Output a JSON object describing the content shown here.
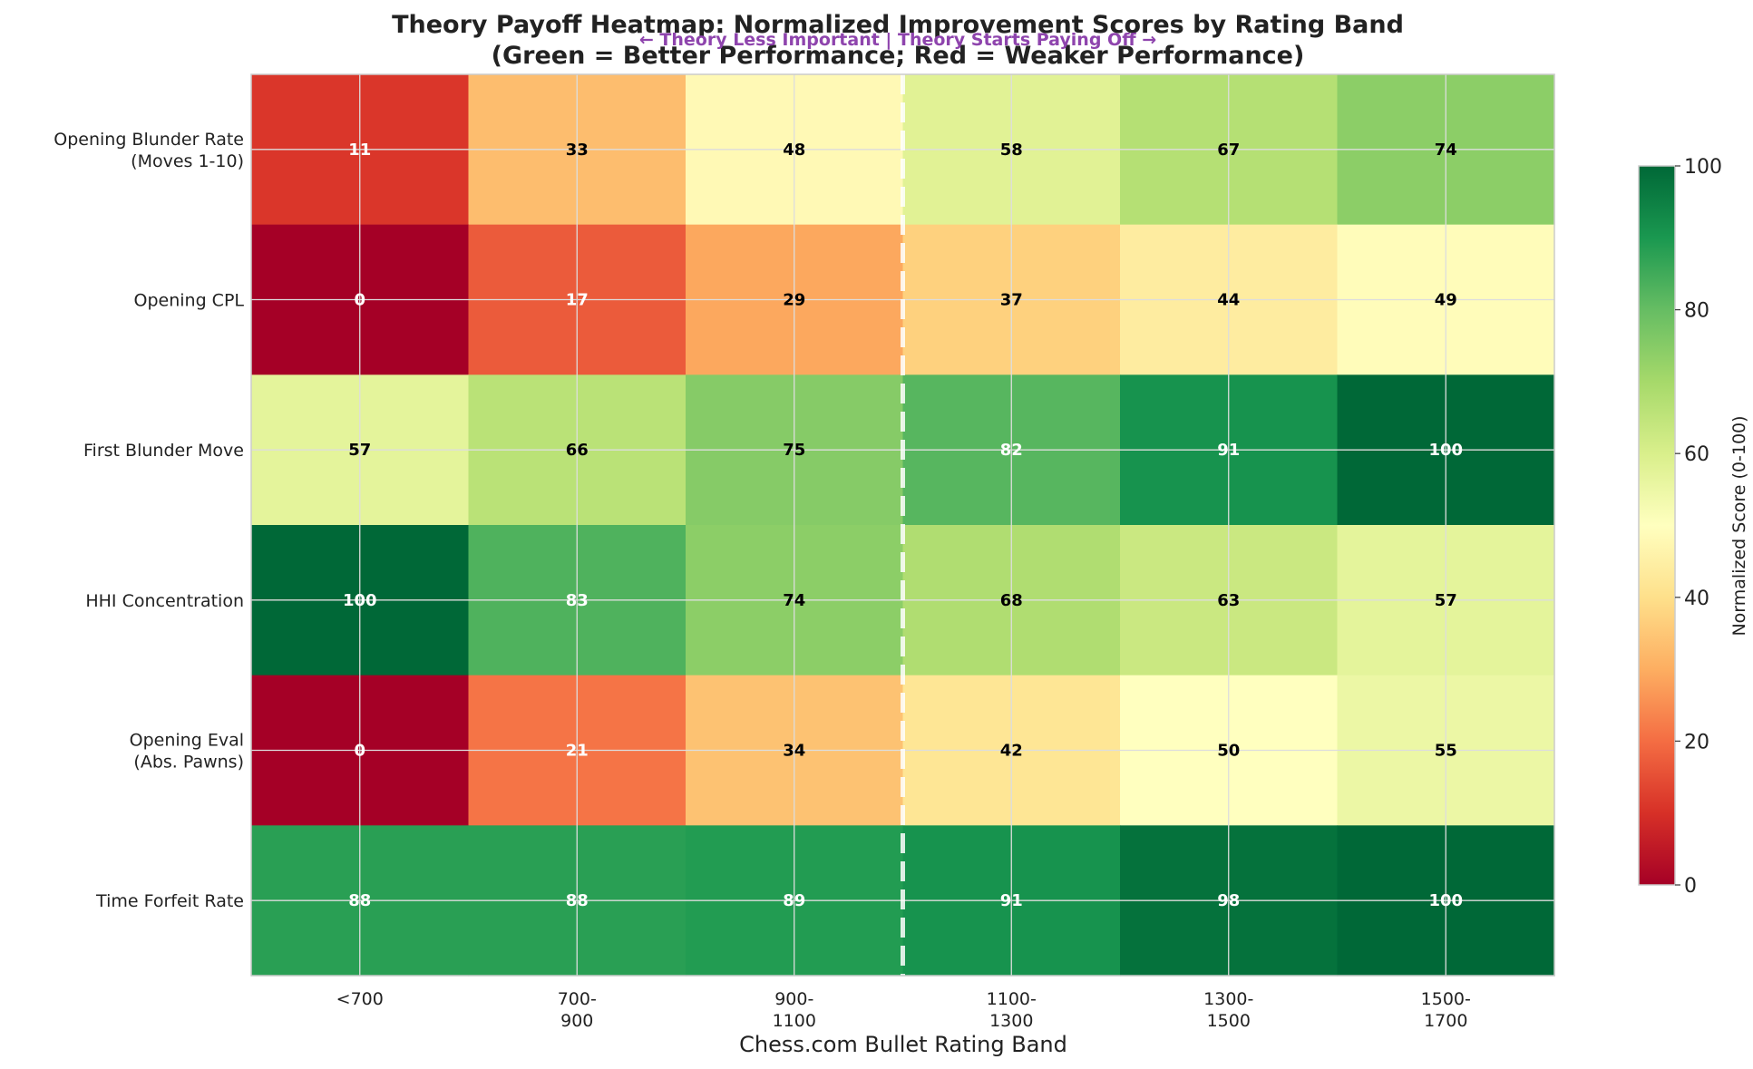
{
  "chart_data": {
    "type": "heatmap",
    "title": "Theory Payoff Heatmap: Normalized Improvement Scores by Rating Band",
    "subtitle": "(Green = Better Performance; Red = Weaker Performance)",
    "annotation": "← Theory Less Important | Theory Starts Paying Off →",
    "xlabel": "Chess.com Bullet Rating Band",
    "x_categories": [
      [
        "<700"
      ],
      [
        "700-",
        "900"
      ],
      [
        "900-",
        "1100"
      ],
      [
        "1100-",
        "1300"
      ],
      [
        "1300-",
        "1500"
      ],
      [
        "1500-",
        "1700"
      ]
    ],
    "y_categories": [
      [
        "Opening Blunder Rate",
        "(Moves 1-10)"
      ],
      [
        "Opening CPL"
      ],
      [
        "First Blunder Move"
      ],
      [
        "HHI Concentration"
      ],
      [
        "Opening Eval",
        "(Abs. Pawns)"
      ],
      [
        "Time Forfeit Rate"
      ]
    ],
    "values": [
      [
        11,
        33,
        48,
        58,
        67,
        74
      ],
      [
        0,
        17,
        29,
        37,
        44,
        49
      ],
      [
        57,
        66,
        75,
        82,
        91,
        100
      ],
      [
        100,
        83,
        74,
        68,
        63,
        57
      ],
      [
        0,
        21,
        34,
        42,
        50,
        55
      ],
      [
        88,
        88,
        89,
        91,
        98,
        100
      ]
    ],
    "divider_after_column": 2,
    "colorbar": {
      "label": "Normalized Score (0-100)",
      "range": [
        0,
        100
      ],
      "ticks": [
        0,
        20,
        40,
        60,
        80,
        100
      ],
      "colormap": "RdYlGn"
    },
    "grid": true
  }
}
